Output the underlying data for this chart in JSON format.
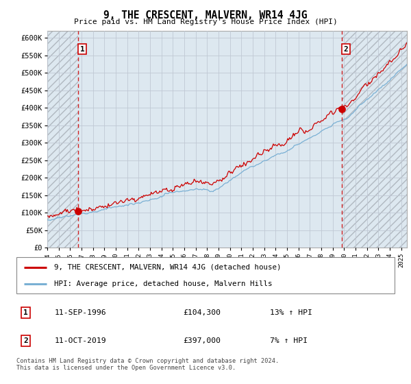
{
  "title": "9, THE CRESCENT, MALVERN, WR14 4JG",
  "subtitle": "Price paid vs. HM Land Registry's House Price Index (HPI)",
  "ylim": [
    0,
    620000
  ],
  "yticks": [
    0,
    50000,
    100000,
    150000,
    200000,
    250000,
    300000,
    350000,
    400000,
    450000,
    500000,
    550000,
    600000
  ],
  "ytick_labels": [
    "£0",
    "£50K",
    "£100K",
    "£150K",
    "£200K",
    "£250K",
    "£300K",
    "£350K",
    "£400K",
    "£450K",
    "£500K",
    "£550K",
    "£600K"
  ],
  "xlim_start": 1994.0,
  "xlim_end": 2025.5,
  "sale1_x": 1996.71,
  "sale1_y": 104300,
  "sale1_label": "1",
  "sale2_x": 2019.79,
  "sale2_y": 397000,
  "sale2_label": "2",
  "red_line_color": "#cc0000",
  "blue_line_color": "#7ab0d4",
  "dot_color": "#cc0000",
  "hatch_color": "#b0b8c0",
  "grid_color": "#c0c8d4",
  "bg_color": "#dde8f0",
  "legend_line1": "9, THE CRESCENT, MALVERN, WR14 4JG (detached house)",
  "legend_line2": "HPI: Average price, detached house, Malvern Hills",
  "trans1_date": "11-SEP-1996",
  "trans1_price": "£104,300",
  "trans1_hpi": "13% ↑ HPI",
  "trans2_date": "11-OCT-2019",
  "trans2_price": "£397,000",
  "trans2_hpi": "7% ↑ HPI",
  "footer": "Contains HM Land Registry data © Crown copyright and database right 2024.\nThis data is licensed under the Open Government Licence v3.0."
}
